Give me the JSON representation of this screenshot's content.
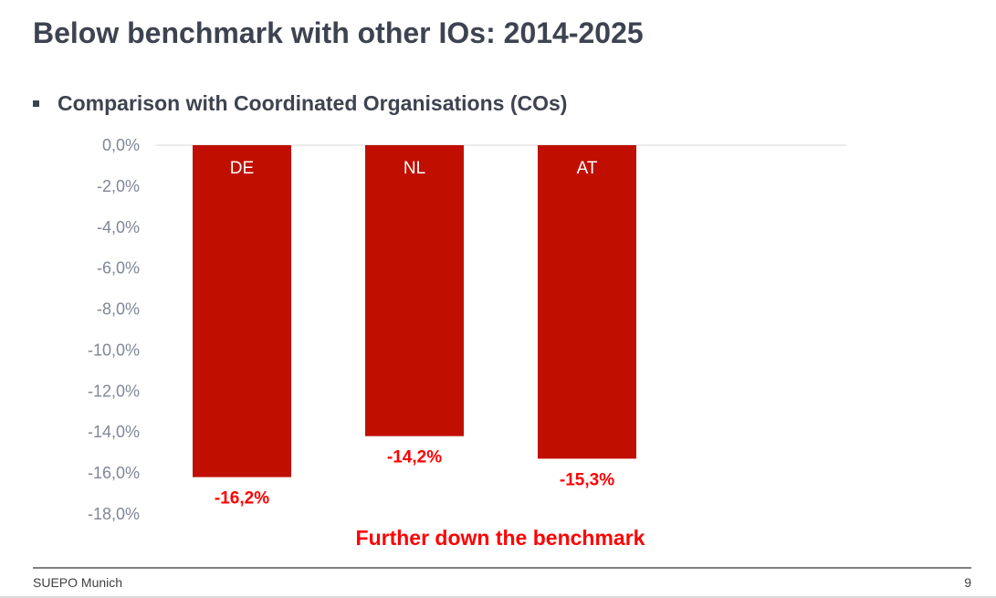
{
  "slide": {
    "title": "Below benchmark with other IOs: 2014-2025",
    "bullet": "Comparison with Coordinated Organisations (COs)",
    "footer_left": "SUEPO Munich",
    "page_number": "9"
  },
  "chart_data": {
    "type": "bar",
    "categories": [
      "DE",
      "NL",
      "AT"
    ],
    "values": [
      -16.2,
      -14.2,
      -15.3
    ],
    "data_labels": [
      "-16,2%",
      "-14,2%",
      "-15,3%"
    ],
    "ylim": [
      -18,
      0
    ],
    "yticks": [
      "0,0%",
      "-2,0%",
      "-4,0%",
      "-6,0%",
      "-8,0%",
      "-10,0%",
      "-12,0%",
      "-14,0%",
      "-16,0%",
      "-18,0%"
    ],
    "annotation": "Further down the benchmark",
    "bar_color": "#c00f00",
    "label_color": "#ff0000",
    "grid": false
  }
}
